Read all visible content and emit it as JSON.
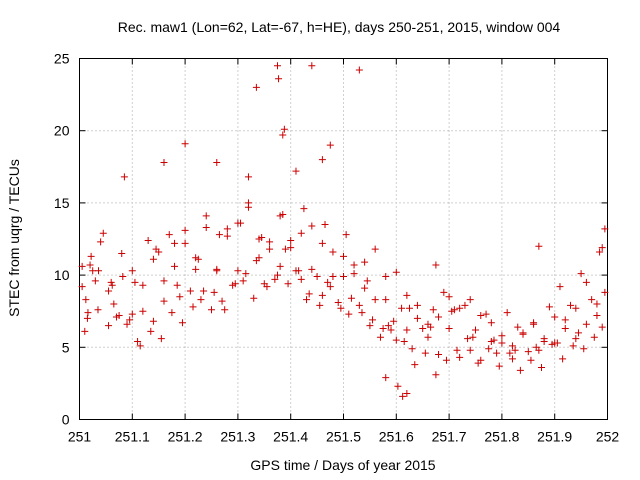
{
  "chart_data": {
    "type": "scatter",
    "title": "Rec. maw1 (Lon=62, Lat=-67, h=HE), days 250-251, 2015, window 004",
    "xlabel": "GPS time / Days of year 2015",
    "ylabel": "STEC from uqrg / TECUs",
    "xlim": [
      251,
      252
    ],
    "ylim": [
      0,
      25
    ],
    "xticks": [
      "251",
      "251.1",
      "251.2",
      "251.3",
      "251.4",
      "251.5",
      "251.6",
      "251.7",
      "251.8",
      "251.9",
      "252"
    ],
    "yticks": [
      "0",
      "5",
      "10",
      "15",
      "20",
      "25"
    ],
    "grid": true,
    "marker": "+",
    "color": "#cc0000",
    "series": [
      {
        "name": "STEC",
        "x": [
          251.005,
          251.005,
          251.012,
          251.016,
          251.022,
          251.03,
          251.036,
          251.045,
          251.055,
          251.062,
          251.07,
          251.082,
          251.09,
          251.1,
          251.11,
          251.12,
          251.13,
          251.14,
          251.15,
          251.16,
          251.17,
          251.18,
          251.19,
          251.2,
          251.21,
          251.22,
          251.23,
          251.24,
          251.25,
          251.26,
          251.27,
          251.28,
          251.29,
          251.3,
          251.31,
          251.32,
          251.33,
          251.34,
          251.35,
          251.36,
          251.37,
          251.38,
          251.39,
          251.4,
          251.41,
          251.42,
          251.43,
          251.44,
          251.45,
          251.46,
          251.47,
          251.48,
          251.49,
          251.5,
          251.51,
          251.52,
          251.53,
          251.54,
          251.55,
          251.56,
          251.57,
          251.58,
          251.59,
          251.6,
          251.61,
          251.62,
          251.63,
          251.64,
          251.65,
          251.66,
          251.67,
          251.68,
          251.69,
          251.7,
          251.71,
          251.72,
          251.73,
          251.74,
          251.75,
          251.76,
          251.77,
          251.78,
          251.79,
          251.8,
          251.81,
          251.82,
          251.83,
          251.84,
          251.85,
          251.86,
          251.87,
          251.88,
          251.89,
          251.9,
          251.91,
          251.92,
          251.93,
          251.94,
          251.95,
          251.96,
          251.97,
          251.98,
          251.99,
          251.995,
          251.01,
          251.02,
          251.04,
          251.06,
          251.08,
          251.1,
          251.12,
          251.14,
          251.16,
          251.18,
          251.2,
          251.22,
          251.24,
          251.26,
          251.28,
          251.3,
          251.32,
          251.34,
          251.36,
          251.38,
          251.4,
          251.42,
          251.44,
          251.46,
          251.48,
          251.5,
          251.52,
          251.54,
          251.56,
          251.58,
          251.6,
          251.62,
          251.64,
          251.66,
          251.68,
          251.7,
          251.72,
          251.74,
          251.76,
          251.78,
          251.8,
          251.82,
          251.84,
          251.86,
          251.88,
          251.9,
          251.92,
          251.94,
          251.96,
          251.98,
          251.015,
          251.035,
          251.055,
          251.075,
          251.095,
          251.115,
          251.135,
          251.155,
          251.175,
          251.195,
          251.215,
          251.235,
          251.255,
          251.275,
          251.295,
          251.315,
          251.335,
          251.355,
          251.375,
          251.395,
          251.415,
          251.435,
          251.455,
          251.475,
          251.495,
          251.515,
          251.535,
          251.555,
          251.575,
          251.595,
          251.615,
          251.635,
          251.655,
          251.675,
          251.695,
          251.715,
          251.735,
          251.755,
          251.775,
          251.795,
          251.815,
          251.835,
          251.855,
          251.875,
          251.895,
          251.915,
          251.935,
          251.955,
          251.975,
          251.99,
          251.025,
          251.065,
          251.105,
          251.145,
          251.185,
          251.225,
          251.265,
          251.305,
          251.345,
          251.385,
          251.425,
          251.465,
          251.505,
          251.545,
          251.585,
          251.625,
          251.665,
          251.705,
          251.745,
          251.785,
          251.825,
          251.865,
          251.905,
          251.945,
          251.985,
          251.085,
          251.16,
          251.2,
          251.26,
          251.32,
          251.335,
          251.375,
          251.377,
          251.388,
          251.44,
          251.475,
          251.385,
          251.41,
          251.46,
          251.53,
          251.603,
          251.612,
          251.58,
          251.62,
          251.675,
          251.87,
          251.995
        ],
        "y": [
          10.6,
          9.2,
          8.3,
          7.4,
          11.3,
          9.6,
          10.3,
          12.9,
          8.9,
          9.3,
          7.1,
          9.9,
          6.6,
          10.3,
          5.4,
          7.5,
          12.4,
          6.8,
          11.6,
          8.2,
          12.8,
          10.6,
          8.5,
          12.2,
          8.9,
          10.4,
          8.3,
          13.3,
          7.6,
          10.4,
          8.2,
          12.7,
          9.3,
          10.3,
          9.6,
          14.7,
          8.4,
          11.2,
          9.4,
          12.3,
          9.7,
          10.6,
          11.8,
          12.4,
          10.3,
          9.7,
          8.3,
          10.4,
          9.9,
          8.6,
          9.5,
          11.6,
          8.1,
          9.9,
          7.3,
          10.7,
          7.9,
          9.1,
          6.5,
          8.3,
          5.7,
          8.3,
          6.2,
          5.5,
          7.7,
          6.2,
          4.9,
          7.0,
          6.3,
          5.7,
          7.6,
          4.5,
          8.8,
          6.3,
          7.6,
          4.3,
          7.9,
          4.8,
          6.2,
          4.1,
          7.3,
          5.4,
          4.6,
          5.3,
          7.4,
          4.2,
          6.4,
          5.9,
          4.7,
          6.7,
          4.8,
          5.6,
          7.8,
          5.3,
          9.2,
          6.3,
          7.9,
          5.6,
          10.1,
          6.6,
          8.3,
          7.2,
          11.9,
          8.8,
          6.1,
          10.7,
          12.3,
          9.5,
          11.5,
          7.3,
          9.3,
          11.1,
          9.6,
          12.2,
          13.1,
          11.2,
          14.1,
          10.3,
          13.2,
          13.6,
          15.0,
          12.5,
          11.8,
          14.1,
          11.9,
          12.9,
          13.4,
          12.2,
          9.9,
          11.3,
          10.1,
          10.9,
          11.8,
          9.9,
          10.2,
          8.6,
          7.9,
          6.6,
          7.1,
          8.5,
          7.7,
          8.3,
          7.2,
          6.7,
          5.8,
          5.1,
          6.0,
          6.6,
          5.4,
          7.1,
          6.9,
          7.7,
          9.5,
          8.0,
          7.0,
          7.6,
          6.5,
          7.2,
          6.9,
          5.1,
          6.1,
          5.6,
          7.4,
          6.7,
          7.8,
          8.9,
          8.8,
          7.6,
          9.4,
          10.1,
          11.0,
          9.2,
          10.0,
          9.4,
          10.3,
          8.7,
          7.9,
          9.2,
          7.7,
          8.4,
          7.4,
          6.9,
          6.3,
          6.8,
          5.4,
          3.8,
          4.6,
          3.1,
          4.1,
          4.8,
          5.6,
          3.9,
          4.9,
          3.7,
          4.6,
          3.4,
          4.1,
          3.6,
          5.2,
          4.2,
          5.1,
          4.9,
          5.7,
          6.4,
          10.3,
          8.0,
          9.5,
          11.8,
          9.3,
          11.1,
          12.8,
          13.6,
          12.6,
          14.2,
          14.6,
          13.5,
          12.8,
          9.6,
          6.5,
          7.7,
          6.4,
          7.5,
          5.7,
          5.5,
          4.8,
          5.0,
          5.3,
          6.0,
          11.6,
          16.8,
          17.8,
          19.1,
          17.8,
          16.8,
          23.0,
          24.5,
          23.6,
          20.1,
          24.5,
          19.0,
          19.7,
          17.2,
          18.0,
          24.2,
          2.3,
          1.6,
          2.9,
          1.8,
          10.7,
          12.0,
          13.2
        ]
      }
    ]
  }
}
